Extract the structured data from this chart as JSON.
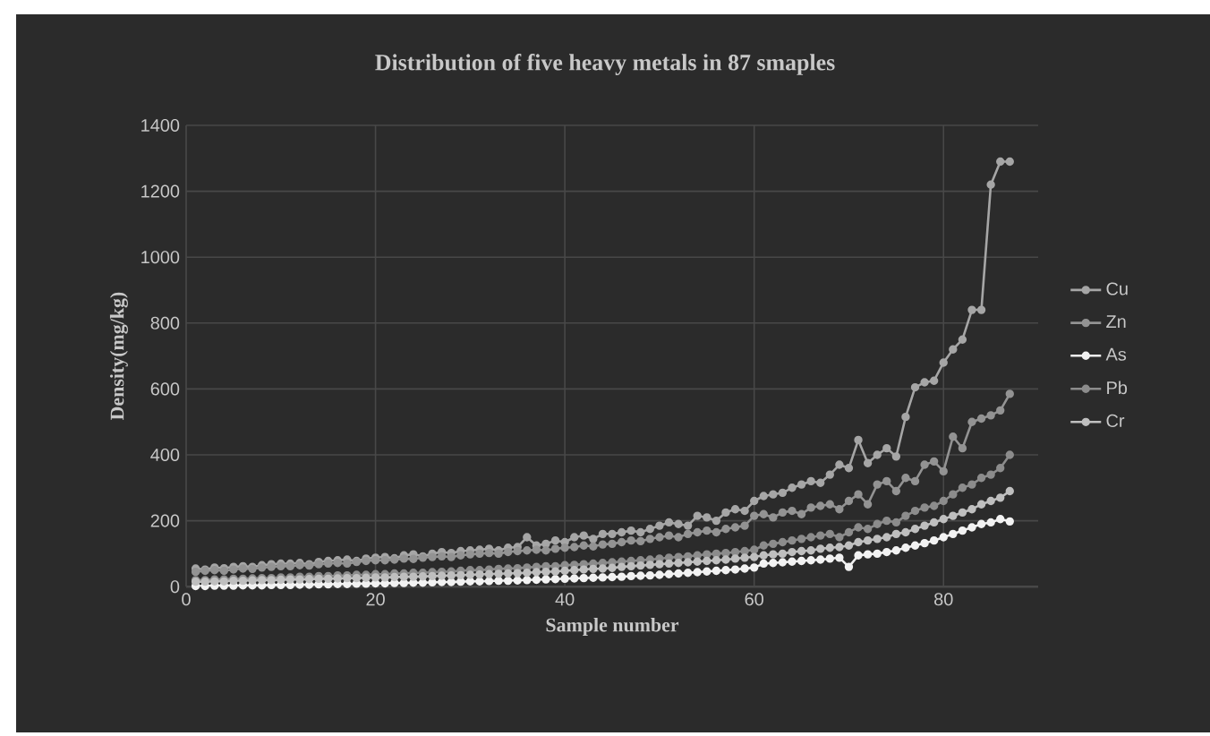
{
  "chart_data": {
    "type": "line",
    "title": "Distribution of five heavy metals in 87 smaples",
    "xlabel": "Sample number",
    "ylabel": "Density(mg/kg)",
    "x": [
      1,
      2,
      3,
      4,
      5,
      6,
      7,
      8,
      9,
      10,
      11,
      12,
      13,
      14,
      15,
      16,
      17,
      18,
      19,
      20,
      21,
      22,
      23,
      24,
      25,
      26,
      27,
      28,
      29,
      30,
      31,
      32,
      33,
      34,
      35,
      36,
      37,
      38,
      39,
      40,
      41,
      42,
      43,
      44,
      45,
      46,
      47,
      48,
      49,
      50,
      51,
      52,
      53,
      54,
      55,
      56,
      57,
      58,
      59,
      60,
      61,
      62,
      63,
      64,
      65,
      66,
      67,
      68,
      69,
      70,
      71,
      72,
      73,
      74,
      75,
      76,
      77,
      78,
      79,
      80,
      81,
      82,
      83,
      84,
      85,
      86,
      87
    ],
    "xlim": [
      0,
      90
    ],
    "xticks": [
      0,
      20,
      40,
      60,
      80
    ],
    "ylim": [
      0,
      1400
    ],
    "yticks": [
      0,
      200,
      400,
      600,
      800,
      1000,
      1200,
      1400
    ],
    "grid": true,
    "legend": "right",
    "marker": "circle",
    "line_style": "solid",
    "series": [
      {
        "name": "Cu",
        "color": "#a6a6a6",
        "values": [
          55,
          52,
          58,
          56,
          60,
          62,
          60,
          65,
          68,
          70,
          70,
          72,
          68,
          75,
          78,
          80,
          82,
          78,
          85,
          88,
          90,
          86,
          95,
          98,
          92,
          100,
          105,
          102,
          108,
          110,
          112,
          115,
          110,
          118,
          120,
          150,
          125,
          130,
          140,
          135,
          150,
          155,
          145,
          160,
          160,
          165,
          170,
          165,
          175,
          185,
          195,
          190,
          185,
          215,
          210,
          200,
          225,
          235,
          230,
          260,
          275,
          280,
          285,
          300,
          310,
          320,
          315,
          340,
          370,
          360,
          445,
          375,
          400,
          420,
          395,
          515,
          605,
          620,
          625,
          680,
          720,
          750,
          840,
          840,
          1220,
          1290,
          1290
        ]
      },
      {
        "name": "Zn",
        "color": "#939393",
        "values": [
          45,
          48,
          50,
          48,
          52,
          55,
          54,
          58,
          60,
          62,
          62,
          65,
          64,
          68,
          70,
          72,
          70,
          75,
          78,
          80,
          80,
          82,
          85,
          84,
          88,
          90,
          92,
          90,
          95,
          98,
          100,
          102,
          100,
          105,
          108,
          110,
          112,
          110,
          115,
          118,
          120,
          125,
          122,
          128,
          130,
          135,
          140,
          138,
          145,
          150,
          155,
          150,
          160,
          165,
          170,
          165,
          175,
          180,
          185,
          215,
          220,
          210,
          225,
          230,
          220,
          240,
          245,
          250,
          235,
          260,
          280,
          250,
          310,
          320,
          290,
          330,
          320,
          370,
          380,
          350,
          455,
          420,
          500,
          510,
          520,
          535,
          585
        ]
      },
      {
        "name": "As",
        "color": "#f2f2f2",
        "values": [
          2,
          2,
          3,
          3,
          3,
          4,
          4,
          4,
          5,
          5,
          5,
          6,
          6,
          7,
          7,
          8,
          8,
          9,
          9,
          10,
          10,
          11,
          11,
          12,
          12,
          13,
          14,
          14,
          15,
          16,
          16,
          17,
          18,
          18,
          19,
          20,
          21,
          22,
          23,
          24,
          25,
          26,
          27,
          28,
          29,
          30,
          32,
          33,
          34,
          36,
          38,
          40,
          42,
          44,
          46,
          48,
          50,
          52,
          55,
          58,
          70,
          72,
          74,
          76,
          78,
          80,
          82,
          85,
          88,
          60,
          95,
          98,
          100,
          105,
          110,
          118,
          125,
          132,
          140,
          150,
          160,
          170,
          180,
          190,
          195,
          205,
          198
        ]
      },
      {
        "name": "Pb",
        "color": "#8c8c8c",
        "values": [
          20,
          20,
          22,
          22,
          24,
          24,
          25,
          26,
          26,
          28,
          28,
          30,
          30,
          32,
          32,
          34,
          34,
          36,
          36,
          38,
          38,
          40,
          40,
          42,
          42,
          44,
          45,
          46,
          48,
          50,
          50,
          52,
          54,
          55,
          56,
          58,
          60,
          62,
          62,
          65,
          66,
          68,
          70,
          72,
          74,
          76,
          78,
          80,
          82,
          85,
          88,
          90,
          92,
          95,
          98,
          100,
          102,
          105,
          108,
          112,
          125,
          130,
          135,
          140,
          145,
          150,
          155,
          160,
          150,
          165,
          180,
          175,
          190,
          200,
          195,
          215,
          230,
          240,
          245,
          260,
          280,
          300,
          310,
          330,
          340,
          360,
          400
        ]
      },
      {
        "name": "Cr",
        "color": "#bfbfbf",
        "values": [
          15,
          15,
          16,
          16,
          18,
          18,
          19,
          20,
          20,
          21,
          22,
          22,
          23,
          24,
          24,
          25,
          26,
          26,
          27,
          28,
          28,
          29,
          30,
          30,
          31,
          32,
          33,
          34,
          35,
          36,
          37,
          38,
          39,
          40,
          41,
          42,
          44,
          45,
          46,
          48,
          50,
          52,
          54,
          55,
          57,
          60,
          62,
          64,
          66,
          68,
          70,
          72,
          74,
          76,
          78,
          80,
          82,
          85,
          88,
          90,
          95,
          98,
          100,
          105,
          108,
          110,
          115,
          118,
          120,
          125,
          135,
          140,
          145,
          150,
          160,
          165,
          175,
          185,
          195,
          205,
          215,
          225,
          235,
          250,
          260,
          270,
          290
        ]
      }
    ]
  }
}
